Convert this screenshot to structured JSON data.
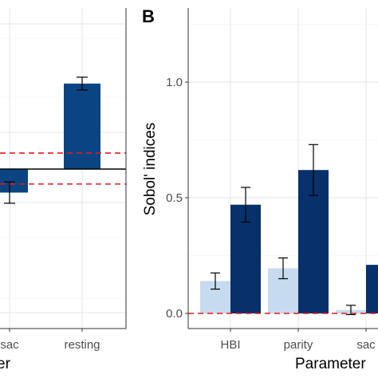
{
  "chart_data": [
    {
      "type": "bar",
      "panel_label": "",
      "categories": [
        "sac",
        "resting"
      ],
      "series": [
        {
          "values": [
            -0.11,
            0.4
          ],
          "error": [
            0.05,
            0.03
          ],
          "color": "#0b4483"
        }
      ],
      "xlabel": "er",
      "ylabel": "",
      "ylim": [
        -0.7,
        0.7
      ],
      "reference_lines": [
        {
          "y": 0.075,
          "style": "dashed",
          "color": "#e31a1c"
        },
        {
          "y": -0.07,
          "style": "dashed",
          "color": "#e31a1c"
        },
        {
          "y": 0.0,
          "style": "solid",
          "color": "#000000"
        }
      ],
      "grid": true
    },
    {
      "type": "bar",
      "panel_label": "B",
      "categories": [
        "HBI",
        "parity",
        "sac"
      ],
      "series": [
        {
          "values": [
            0.14,
            0.195,
            0.015
          ],
          "error": [
            0.035,
            0.045,
            0.02
          ],
          "color": "#c6dbef"
        },
        {
          "values": [
            0.47,
            0.62,
            0.21
          ],
          "error": [
            0.075,
            0.11,
            0.0
          ],
          "color": "#08306b"
        }
      ],
      "xlabel": "Parameter",
      "ylabel": "Sobol' indices",
      "yticks": [
        "0.0",
        "0.5",
        "1.0"
      ],
      "ylim": [
        -0.05,
        1.3
      ],
      "reference_lines": [
        {
          "y": 0.0,
          "style": "dashed",
          "color": "#e31a1c"
        }
      ],
      "grid": true
    }
  ]
}
